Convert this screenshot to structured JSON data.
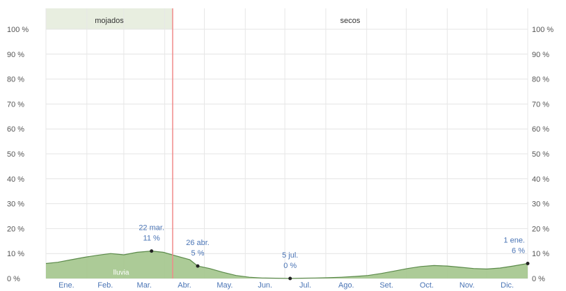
{
  "chart_data": {
    "type": "area",
    "title": "",
    "xlabel": "",
    "ylabel": "",
    "ylim": [
      0,
      100
    ],
    "y_ticks": [
      "0 %",
      "10 %",
      "20 %",
      "30 %",
      "40 %",
      "50 %",
      "60 %",
      "70 %",
      "80 %",
      "90 %",
      "100 %"
    ],
    "months": [
      "Ene.",
      "Feb.",
      "Mar.",
      "Abr.",
      "May.",
      "Jun.",
      "Jul.",
      "Ago.",
      "Set.",
      "Oct.",
      "Nov.",
      "Dic."
    ],
    "seasons": [
      {
        "label": "mojados",
        "start_day": 1,
        "end_day": 97,
        "color": "#e8eee0"
      },
      {
        "label": "secos",
        "start_day": 97,
        "end_day": 366,
        "color": "#ffffff"
      }
    ],
    "today_day": 97,
    "series": [
      {
        "label": "lluvia",
        "color": "#a3c58c",
        "line_color": "#5b8a4a",
        "x_day": [
          1,
          10,
          20,
          30,
          40,
          50,
          60,
          70,
          81,
          90,
          100,
          110,
          116,
          125,
          135,
          145,
          155,
          165,
          175,
          186,
          195,
          205,
          215,
          225,
          235,
          245,
          255,
          265,
          275,
          285,
          295,
          305,
          315,
          325,
          335,
          345,
          355,
          366
        ],
        "y": [
          6,
          6.5,
          7.5,
          8.5,
          9.3,
          10,
          9.5,
          10.5,
          11,
          10.5,
          9,
          7.5,
          5,
          4,
          2.5,
          1.2,
          0.5,
          0.2,
          0.1,
          0,
          0.1,
          0.2,
          0.3,
          0.5,
          0.8,
          1.2,
          2,
          3,
          4,
          4.8,
          5.2,
          5,
          4.5,
          4,
          3.8,
          4.2,
          5,
          6
        ]
      }
    ],
    "area_label": "lluvia",
    "annotations": [
      {
        "day": 81,
        "value": 11,
        "line1": "22 mar.",
        "line2": "11 %"
      },
      {
        "day": 116,
        "value": 5,
        "line1": "26 abr.",
        "line2": "5 %"
      },
      {
        "day": 186,
        "value": 0,
        "line1": "5 jul.",
        "line2": "0 %"
      },
      {
        "day": 366,
        "value": 6,
        "line1": "1 ene.",
        "line2": "6 %"
      }
    ]
  },
  "colors": {
    "grid": "#e4e4e4",
    "month_grid": "#e7e7e7",
    "axis_text": "#555555",
    "month_text": "#4a74b5",
    "annotation_text": "#4a74b5",
    "today_line": "#f08a8a"
  }
}
